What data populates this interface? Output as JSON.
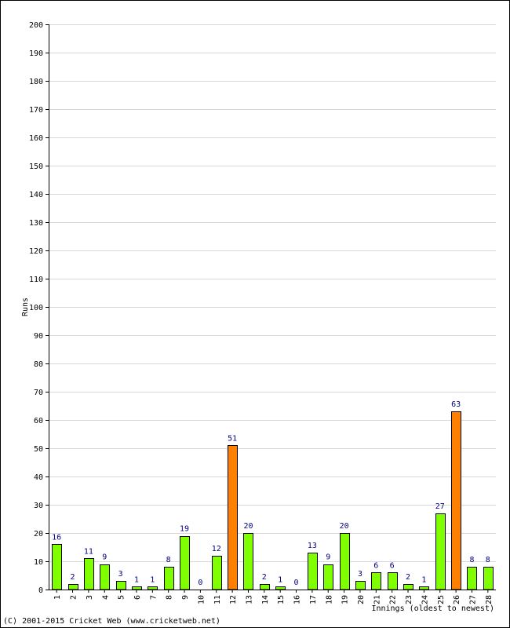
{
  "chart_data": {
    "type": "bar",
    "categories": [
      "1",
      "2",
      "3",
      "4",
      "5",
      "6",
      "7",
      "8",
      "9",
      "10",
      "11",
      "12",
      "13",
      "14",
      "15",
      "16",
      "17",
      "18",
      "19",
      "20",
      "21",
      "22",
      "23",
      "24",
      "25",
      "26",
      "27",
      "28"
    ],
    "values": [
      16,
      2,
      11,
      9,
      3,
      1,
      1,
      8,
      19,
      0,
      12,
      51,
      20,
      2,
      1,
      0,
      13,
      9,
      20,
      3,
      6,
      6,
      2,
      1,
      27,
      63,
      8,
      8
    ],
    "highlight": [
      false,
      false,
      false,
      false,
      false,
      false,
      false,
      false,
      false,
      false,
      false,
      true,
      false,
      false,
      false,
      false,
      false,
      false,
      false,
      false,
      false,
      false,
      false,
      false,
      false,
      true,
      false,
      false
    ],
    "ylabel": "Runs",
    "xlabel": "Innings (oldest to newest)",
    "ylim": [
      0,
      200
    ],
    "yticks": [
      0,
      10,
      20,
      30,
      40,
      50,
      60,
      70,
      80,
      90,
      100,
      110,
      120,
      130,
      140,
      150,
      160,
      170,
      180,
      190,
      200
    ],
    "grid": true,
    "colors": {
      "normal": "#80ff00",
      "highlight": "#ff8000",
      "label": "#000080",
      "grid": "#d8d8d8"
    }
  },
  "footer": {
    "copyright": "(C) 2001-2015 Cricket Web (www.cricketweb.net)"
  }
}
